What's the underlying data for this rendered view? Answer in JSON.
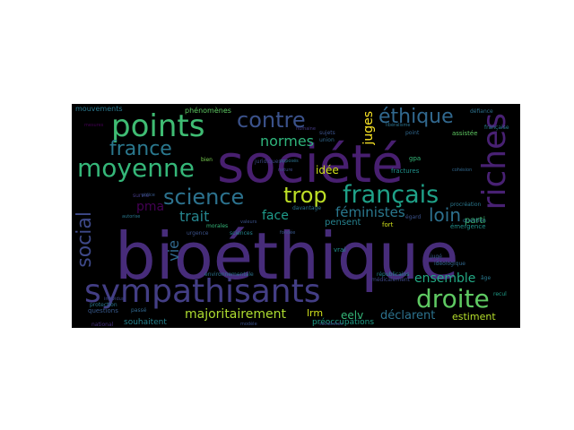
{
  "words": [
    {
      "text": "bioéthique",
      "color": "#472c7a"
    },
    {
      "text": "société",
      "color": "#481f70"
    },
    {
      "text": "sympathisants",
      "color": "#433e85"
    },
    {
      "text": "points",
      "color": "#3fbc73"
    },
    {
      "text": "moyenne",
      "color": "#35b779"
    },
    {
      "text": "riches",
      "color": "#482173"
    },
    {
      "text": "français",
      "color": "#1fa188"
    },
    {
      "text": "droite",
      "color": "#5ec962"
    },
    {
      "text": "science",
      "color": "#2c728e"
    },
    {
      "text": "france",
      "color": "#2a788e"
    },
    {
      "text": "contre",
      "color": "#3b528b"
    },
    {
      "text": "éthique",
      "color": "#31688e"
    },
    {
      "text": "trop",
      "color": "#bddf26"
    },
    {
      "text": "social",
      "color": "#3e4989"
    },
    {
      "text": "normes",
      "color": "#2fb47c"
    },
    {
      "text": "majoritairement",
      "color": "#addc30"
    },
    {
      "text": "loin",
      "color": "#2d708e"
    },
    {
      "text": "trait",
      "color": "#25858e"
    },
    {
      "text": "face",
      "color": "#1e9b8a"
    },
    {
      "text": "féministes",
      "color": "#2a788e"
    },
    {
      "text": "juges",
      "color": "#fde725"
    },
    {
      "text": "idée",
      "color": "#d2e21b"
    },
    {
      "text": "vie",
      "color": "#31688e"
    },
    {
      "text": "pma",
      "color": "#440154"
    },
    {
      "text": "ensemble",
      "color": "#22a884"
    },
    {
      "text": "déclarent",
      "color": "#2c728e"
    },
    {
      "text": "estiment",
      "color": "#b5de2b"
    },
    {
      "text": "lrm",
      "color": "#d0e11c"
    },
    {
      "text": "eelv",
      "color": "#35b779"
    },
    {
      "text": "pensent",
      "color": "#26828e"
    },
    {
      "text": "souhaitent",
      "color": "#26828e"
    },
    {
      "text": "parti",
      "color": "#3fbc73"
    },
    {
      "text": "mouvements",
      "color": "#2a788e"
    },
    {
      "text": "phénomènes",
      "color": "#5ec962"
    },
    {
      "text": "préoccupations",
      "color": "#1f9e89"
    },
    {
      "text": "davantage",
      "color": "#2c728e"
    },
    {
      "text": "environnementale",
      "color": "#2c728e"
    },
    {
      "text": "fractures",
      "color": "#20928c"
    },
    {
      "text": "émergence",
      "color": "#21918c"
    },
    {
      "text": "urgence",
      "color": "#3b528b"
    },
    {
      "text": "protection",
      "color": "#2a788e"
    },
    {
      "text": "questions",
      "color": "#38598c"
    },
    {
      "text": "morales",
      "color": "#35b779"
    },
    {
      "text": "juridiques",
      "color": "#3e4989"
    },
    {
      "text": "française",
      "color": "#287c8e"
    },
    {
      "text": "survie",
      "color": "#443983"
    },
    {
      "text": "procréation",
      "color": "#2a788e"
    },
    {
      "text": "socialistes",
      "color": "#404688"
    },
    {
      "text": "républicains",
      "color": "#25858e"
    },
    {
      "text": "idéologique",
      "color": "#31688e"
    },
    {
      "text": "vrai",
      "color": "#21918c"
    },
    {
      "text": "national",
      "color": "#46327e"
    },
    {
      "text": "sujets",
      "color": "#3b528b"
    },
    {
      "text": "médicalement",
      "color": "#3e4989"
    },
    {
      "text": "assistée",
      "color": "#5ec962"
    },
    {
      "text": "question",
      "color": "#2c728e"
    },
    {
      "text": "gpa",
      "color": "#35b779"
    },
    {
      "text": "égard",
      "color": "#3b528b"
    },
    {
      "text": "point",
      "color": "#31688e"
    },
    {
      "text": "fort",
      "color": "#d2e21b"
    },
    {
      "text": "jugé",
      "color": "#38598c"
    },
    {
      "text": "opposés",
      "color": "#2c728e"
    },
    {
      "text": "sciences",
      "color": "#25858e"
    },
    {
      "text": "autorise",
      "color": "#2a788e"
    },
    {
      "text": "valeurs",
      "color": "#3b528b"
    },
    {
      "text": "union",
      "color": "#31688e"
    },
    {
      "text": "défiance",
      "color": "#2c728e"
    },
    {
      "text": "police",
      "color": "#38598c"
    },
    {
      "text": "passé",
      "color": "#31688e"
    },
    {
      "text": "mesures",
      "color": "#440154"
    },
    {
      "text": "individus",
      "color": "#3e4989"
    },
    {
      "text": "humaine",
      "color": "#443983"
    },
    {
      "text": "fondée",
      "color": "#38598c"
    },
    {
      "text": "bien",
      "color": "#7ad151"
    },
    {
      "text": "âge",
      "color": "#2a788e"
    },
    {
      "text": "recul",
      "color": "#1f9e89"
    },
    {
      "text": "modèle",
      "color": "#3b528b"
    },
    {
      "text": "libéralisme",
      "color": "#2c728e"
    },
    {
      "text": "cohésion",
      "color": "#31688e"
    },
    {
      "text": "nature",
      "color": "#3e4989"
    }
  ]
}
